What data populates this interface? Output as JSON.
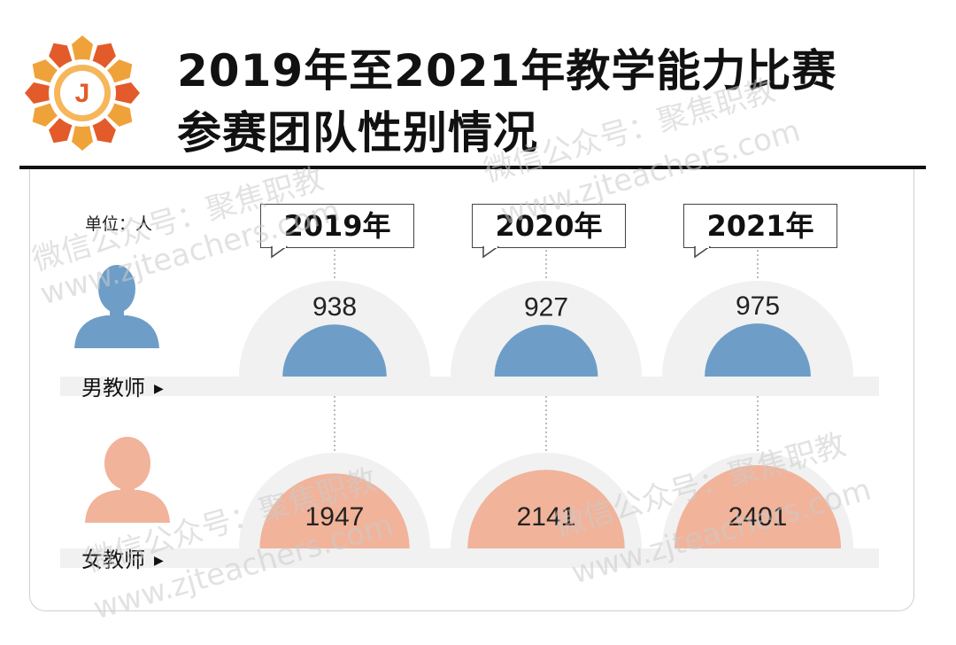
{
  "title": {
    "line1": "2019年至2021年教学能力比赛",
    "line2": "参赛团队性别情况"
  },
  "logo": {
    "letter": "J",
    "colors": {
      "outer": "#f0a23a",
      "inner": "#e35b2a"
    }
  },
  "unit_label": "单位：人",
  "watermarks": [
    "微信公众号：聚焦职教",
    "www.zjteachers.com"
  ],
  "colors": {
    "male": "#6e9ec7",
    "female": "#f1b39a",
    "backdrop": "#f1f1f1"
  },
  "chart_data": {
    "type": "bar",
    "categories": [
      "2019年",
      "2020年",
      "2021年"
    ],
    "series": [
      {
        "name": "男教师",
        "values": [
          938,
          927,
          975
        ]
      },
      {
        "name": "女教师",
        "values": [
          1947,
          2141,
          2401
        ]
      }
    ]
  }
}
